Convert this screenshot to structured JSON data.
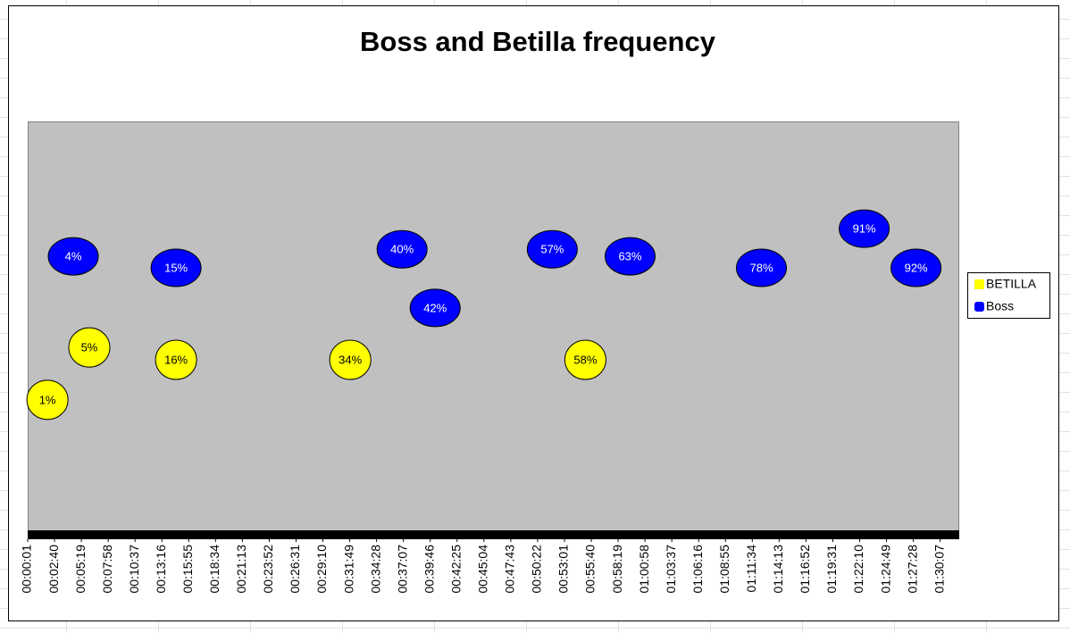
{
  "chart_data": {
    "type": "scatter",
    "title": "Boss and Betilla frequency",
    "xlim": [
      1,
      5520
    ],
    "ylim": [
      0,
      10
    ],
    "xticks": [
      {
        "value": 1,
        "label": "00:00:01"
      },
      {
        "value": 160,
        "label": "00:02:40"
      },
      {
        "value": 319,
        "label": "00:05:19"
      },
      {
        "value": 478,
        "label": "00:07:58"
      },
      {
        "value": 637,
        "label": "00:10:37"
      },
      {
        "value": 796,
        "label": "00:13:16"
      },
      {
        "value": 955,
        "label": "00:15:55"
      },
      {
        "value": 1114,
        "label": "00:18:34"
      },
      {
        "value": 1273,
        "label": "00:21:13"
      },
      {
        "value": 1432,
        "label": "00:23:52"
      },
      {
        "value": 1591,
        "label": "00:26:31"
      },
      {
        "value": 1750,
        "label": "00:29:10"
      },
      {
        "value": 1909,
        "label": "00:31:49"
      },
      {
        "value": 2068,
        "label": "00:34:28"
      },
      {
        "value": 2227,
        "label": "00:37:07"
      },
      {
        "value": 2386,
        "label": "00:39:46"
      },
      {
        "value": 2545,
        "label": "00:42:25"
      },
      {
        "value": 2704,
        "label": "00:45:04"
      },
      {
        "value": 2863,
        "label": "00:47:43"
      },
      {
        "value": 3022,
        "label": "00:50:22"
      },
      {
        "value": 3181,
        "label": "00:53:01"
      },
      {
        "value": 3340,
        "label": "00:55:40"
      },
      {
        "value": 3499,
        "label": "00:58:19"
      },
      {
        "value": 3658,
        "label": "01:00:58"
      },
      {
        "value": 3817,
        "label": "01:03:37"
      },
      {
        "value": 3976,
        "label": "01:06:16"
      },
      {
        "value": 4135,
        "label": "01:08:55"
      },
      {
        "value": 4294,
        "label": "01:11:34"
      },
      {
        "value": 4453,
        "label": "01:14:13"
      },
      {
        "value": 4612,
        "label": "01:16:52"
      },
      {
        "value": 4771,
        "label": "01:19:31"
      },
      {
        "value": 4930,
        "label": "01:22:10"
      },
      {
        "value": 5089,
        "label": "01:24:49"
      },
      {
        "value": 5248,
        "label": "01:27:28"
      },
      {
        "value": 5407,
        "label": "01:30:07"
      }
    ],
    "legend": "right",
    "series": [
      {
        "name": "BETILLA",
        "color": "#ffff00",
        "label_color": "#000000",
        "x": [
          118,
          366,
          880,
          1912,
          3305
        ],
        "values": [
          3.25,
          4.52,
          4.22,
          4.22,
          4.22
        ],
        "labels": [
          "1%",
          "5%",
          "16%",
          "34%",
          "58%"
        ]
      },
      {
        "name": "Boss",
        "color": "#0000ff",
        "label_color": "#ffffff",
        "x": [
          271,
          880,
          2219,
          2415,
          3109,
          3570,
          4348,
          4957,
          5264
        ],
        "values": [
          6.73,
          6.45,
          6.9,
          5.48,
          6.9,
          6.73,
          6.45,
          7.4,
          6.45
        ],
        "labels": [
          "4%",
          "15%",
          "40%",
          "42%",
          "57%",
          "63%",
          "78%",
          "91%",
          "92%"
        ]
      }
    ]
  }
}
